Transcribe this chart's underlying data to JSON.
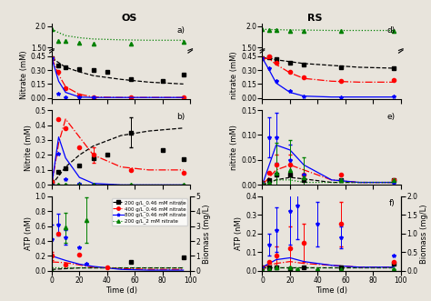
{
  "legend_labels": [
    "200 g/L_0.46 mM nitrate",
    "400 g/L_0.46 mM nitrate",
    "800 g/L_0.46 mM nitrate",
    "200 g/L_2 mM nitrate"
  ],
  "colors": [
    "black",
    "red",
    "blue",
    "green"
  ],
  "linestyles_model": [
    "--",
    "-.",
    "-",
    ":"
  ],
  "markers": [
    "s",
    "o",
    "*",
    "^"
  ],
  "OS_nitrate": {
    "t_data": [
      [
        0,
        5,
        10,
        20,
        30,
        40,
        57,
        80,
        95
      ],
      [
        0,
        5,
        10,
        20,
        30,
        57,
        95
      ],
      [
        0,
        5,
        10,
        20,
        30
      ],
      [
        0,
        5,
        10,
        20,
        30,
        57,
        95
      ]
    ],
    "y_data": [
      [
        0.43,
        0.35,
        0.33,
        0.31,
        0.3,
        0.28,
        0.2,
        0.18,
        0.25
      ],
      [
        0.43,
        0.28,
        0.1,
        0.03,
        0.01,
        0.005,
        0.01
      ],
      [
        0.43,
        0.05,
        0.01,
        0.005,
        0.005
      ],
      [
        1.93,
        1.65,
        1.65,
        1.62,
        1.6,
        1.6,
        1.63
      ]
    ],
    "t_model": [
      [
        0,
        5,
        10,
        20,
        30,
        50,
        70,
        95
      ],
      [
        0,
        5,
        10,
        20,
        30,
        50,
        70,
        95
      ],
      [
        0,
        5,
        10,
        20,
        30,
        50,
        70,
        95
      ],
      [
        0,
        5,
        10,
        20,
        30,
        50,
        70,
        95
      ]
    ],
    "y_model": [
      [
        0.43,
        0.38,
        0.33,
        0.28,
        0.24,
        0.2,
        0.17,
        0.15
      ],
      [
        0.43,
        0.25,
        0.12,
        0.04,
        0.01,
        0.005,
        0.005,
        0.005
      ],
      [
        0.43,
        0.18,
        0.06,
        0.01,
        0.005,
        0.005,
        0.005,
        0.005
      ],
      [
        1.93,
        1.85,
        1.78,
        1.73,
        1.7,
        1.68,
        1.67,
        1.67
      ]
    ],
    "ylim": [
      0,
      2.0
    ],
    "yticks_bottom": [
      0.0,
      0.15,
      0.3,
      0.45
    ],
    "yticks_top": [
      1.5,
      2.0
    ],
    "ylabel": "Nitrate (mM)",
    "label": "a)"
  },
  "OS_nitrite": {
    "t_data": [
      [
        0,
        5,
        10,
        20,
        30,
        40,
        57,
        80,
        95
      ],
      [
        0,
        5,
        10,
        20,
        30,
        57,
        95
      ],
      [
        0,
        5,
        10,
        20,
        30
      ],
      [
        0,
        5,
        10,
        20,
        30,
        57,
        95
      ]
    ],
    "y_data": [
      [
        0.02,
        0.09,
        0.11,
        0.13,
        0.18,
        0.2,
        0.35,
        0.23,
        0.17
      ],
      [
        0.02,
        0.44,
        0.38,
        0.25,
        0.2,
        0.1,
        0.08
      ],
      [
        0.0,
        0.21,
        0.04,
        0.01,
        0.0
      ],
      [
        0.0,
        0.0,
        0.0,
        0.0,
        0.0,
        0.0,
        0.0
      ]
    ],
    "y_err": [
      [
        0,
        0,
        0,
        0,
        0,
        0,
        0.1,
        0,
        0
      ],
      [
        0,
        0,
        0,
        0,
        0.05,
        0,
        0
      ],
      [
        0,
        0,
        0,
        0,
        0
      ],
      [
        0,
        0,
        0,
        0,
        0,
        0,
        0
      ]
    ],
    "t_model": [
      [
        0,
        5,
        10,
        20,
        30,
        50,
        70,
        95
      ],
      [
        0,
        5,
        10,
        20,
        30,
        50,
        70,
        95
      ],
      [
        0,
        5,
        10,
        20,
        30,
        50,
        70,
        95
      ],
      [
        0,
        5,
        10,
        20,
        30,
        50,
        70,
        95
      ]
    ],
    "y_model": [
      [
        0.0,
        0.06,
        0.12,
        0.2,
        0.26,
        0.33,
        0.36,
        0.38
      ],
      [
        0.0,
        0.28,
        0.44,
        0.32,
        0.2,
        0.12,
        0.1,
        0.1
      ],
      [
        0.0,
        0.32,
        0.18,
        0.05,
        0.01,
        0.0,
        0.0,
        0.0
      ],
      [
        0.0,
        0.0,
        0.0,
        0.0,
        0.0,
        0.0,
        0.0,
        0.0
      ]
    ],
    "ylim": [
      0,
      0.5
    ],
    "ylabel": "Nitrite (mM)",
    "label": "b)"
  },
  "OS_atp": {
    "t_data": [
      [
        57,
        95
      ],
      [
        0,
        5,
        10,
        20,
        40
      ],
      [
        0,
        5,
        10,
        20,
        25
      ],
      [
        0,
        10,
        25
      ]
    ],
    "y_data": [
      [
        0.12,
        0.18
      ],
      [
        0.2,
        0.5,
        0.08,
        0.22,
        0.05
      ],
      [
        0.42,
        0.62,
        0.45,
        0.32,
        0.1
      ],
      [
        0.0,
        0.58,
        0.68
      ]
    ],
    "y_err": [
      [
        0.0,
        0.0
      ],
      [
        0.05,
        0.0,
        0.0,
        0.0,
        0.0
      ],
      [
        0.2,
        0.15,
        0.1,
        0.0,
        0.0
      ],
      [
        0.0,
        0.2,
        0.3
      ]
    ],
    "t_model": [
      [
        0,
        10,
        20,
        30,
        50,
        70,
        95
      ],
      [
        0,
        10,
        20,
        30,
        50,
        70,
        95
      ],
      [
        0,
        10,
        20,
        30,
        50,
        70,
        95
      ],
      [
        0,
        10,
        20,
        30,
        50,
        70,
        95
      ]
    ],
    "y_model": [
      [
        0.02,
        0.03,
        0.04,
        0.04,
        0.04,
        0.04,
        0.04
      ],
      [
        0.12,
        0.11,
        0.08,
        0.05,
        0.03,
        0.02,
        0.02
      ],
      [
        0.2,
        0.14,
        0.09,
        0.06,
        0.02,
        0.01,
        0.01
      ],
      [
        0.05,
        0.05,
        0.05,
        0.05,
        0.05,
        0.05,
        0.05
      ]
    ],
    "ylim": [
      0,
      1.0
    ],
    "ylabel": "ATP (nM)",
    "ylabel2": "Biomass (mg/L)",
    "ylim2": [
      0,
      5
    ],
    "label": "c)"
  },
  "RS_nitrate": {
    "t_data": [
      [
        0,
        5,
        10,
        20,
        30,
        57,
        95
      ],
      [
        0,
        5,
        10,
        20,
        30,
        57,
        95
      ],
      [
        0,
        5,
        10,
        20,
        30,
        57,
        95
      ],
      [
        0,
        5,
        10,
        20,
        30,
        57,
        95
      ]
    ],
    "y_data": [
      [
        0.43,
        0.44,
        0.42,
        0.38,
        0.36,
        0.33,
        0.32
      ],
      [
        0.43,
        0.45,
        0.38,
        0.28,
        0.22,
        0.18,
        0.19
      ],
      [
        0.43,
        0.32,
        0.18,
        0.08,
        0.02,
        0.01,
        0.02
      ],
      [
        1.93,
        1.92,
        1.91,
        1.9,
        1.9,
        1.89,
        1.89
      ]
    ],
    "t_model": [
      [
        0,
        5,
        10,
        20,
        30,
        50,
        70,
        95
      ],
      [
        0,
        5,
        10,
        20,
        30,
        50,
        70,
        95
      ],
      [
        0,
        5,
        10,
        20,
        30,
        50,
        70,
        95
      ],
      [
        0,
        5,
        10,
        20,
        30,
        50,
        70,
        95
      ]
    ],
    "y_model": [
      [
        0.43,
        0.43,
        0.41,
        0.39,
        0.37,
        0.35,
        0.33,
        0.32
      ],
      [
        0.43,
        0.42,
        0.36,
        0.27,
        0.21,
        0.18,
        0.17,
        0.17
      ],
      [
        0.43,
        0.3,
        0.16,
        0.06,
        0.02,
        0.01,
        0.01,
        0.01
      ],
      [
        1.93,
        1.92,
        1.92,
        1.91,
        1.91,
        1.9,
        1.9,
        1.9
      ]
    ],
    "ylim": [
      0,
      2.0
    ],
    "yticks_bottom": [
      0.0,
      0.15,
      0.3,
      0.45
    ],
    "yticks_top": [
      1.5,
      2.0
    ],
    "ylabel": "nitrate (mM)",
    "label": "d)"
  },
  "RS_nitrite": {
    "t_data": [
      [
        0,
        5,
        10,
        20,
        30,
        57,
        95
      ],
      [
        0,
        5,
        10,
        20,
        30,
        57,
        95
      ],
      [
        0,
        5,
        10,
        20,
        30,
        57,
        95
      ],
      [
        0,
        5,
        10,
        20,
        30,
        57,
        95
      ]
    ],
    "y_data": [
      [
        0.005,
        0.01,
        0.02,
        0.02,
        0.01,
        0.01,
        0.01
      ],
      [
        0.005,
        0.025,
        0.04,
        0.04,
        0.02,
        0.02,
        0.01
      ],
      [
        0.005,
        0.095,
        0.095,
        0.05,
        0.02,
        0.01,
        0.005
      ],
      [
        0.005,
        0.005,
        0.025,
        0.03,
        0.015,
        0.01,
        0.01
      ]
    ],
    "y_err": [
      [
        0,
        0,
        0,
        0,
        0,
        0,
        0
      ],
      [
        0,
        0,
        0.02,
        0.02,
        0,
        0,
        0
      ],
      [
        0,
        0.04,
        0.05,
        0.03,
        0,
        0,
        0
      ],
      [
        0,
        0,
        0.06,
        0.06,
        0.04,
        0,
        0
      ]
    ],
    "t_model": [
      [
        0,
        5,
        10,
        20,
        30,
        50,
        70,
        95
      ],
      [
        0,
        5,
        10,
        20,
        30,
        50,
        70,
        95
      ],
      [
        0,
        5,
        10,
        20,
        30,
        50,
        70,
        95
      ],
      [
        0,
        5,
        10,
        20,
        30,
        50,
        70,
        95
      ]
    ],
    "y_model": [
      [
        0.0,
        0.005,
        0.01,
        0.015,
        0.012,
        0.005,
        0.005,
        0.005
      ],
      [
        0.0,
        0.015,
        0.03,
        0.04,
        0.03,
        0.01,
        0.005,
        0.005
      ],
      [
        0.0,
        0.04,
        0.08,
        0.07,
        0.04,
        0.01,
        0.005,
        0.005
      ],
      [
        0.0,
        0.005,
        0.01,
        0.01,
        0.005,
        0.005,
        0.005,
        0.005
      ]
    ],
    "ylim": [
      0,
      0.15
    ],
    "ylabel": "nitrite (mM)",
    "label": "e)"
  },
  "RS_atp": {
    "t_data": [
      [
        0,
        5,
        10,
        20,
        30,
        57,
        95
      ],
      [
        0,
        5,
        10,
        20,
        30,
        57,
        95
      ],
      [
        0,
        5,
        10,
        20,
        25,
        40,
        57,
        95
      ],
      [
        0,
        5,
        10,
        20,
        25,
        40,
        57,
        95
      ]
    ],
    "y_data": [
      [
        0.02,
        0.02,
        0.02,
        0.01,
        0.02,
        0.02,
        0.04
      ],
      [
        0.02,
        0.05,
        0.08,
        0.12,
        0.15,
        0.25,
        0.05
      ],
      [
        0.02,
        0.14,
        0.22,
        0.32,
        0.35,
        0.25,
        0.18,
        0.08
      ],
      [
        0.01,
        0.01,
        0.02,
        0.02,
        0.01,
        0.01,
        0.01,
        0.01
      ]
    ],
    "y_err": [
      [
        0,
        0,
        0,
        0,
        0,
        0,
        0
      ],
      [
        0,
        0,
        0.05,
        0.12,
        0.1,
        0.12,
        0.0
      ],
      [
        0,
        0.06,
        0.12,
        0.18,
        0.18,
        0.12,
        0.06,
        0.0
      ],
      [
        0,
        0,
        0,
        0,
        0,
        0,
        0,
        0
      ]
    ],
    "t_model": [
      [
        0,
        10,
        20,
        30,
        50,
        70,
        95
      ],
      [
        0,
        10,
        20,
        30,
        50,
        70,
        95
      ],
      [
        0,
        10,
        20,
        30,
        50,
        70,
        95
      ],
      [
        0,
        10,
        20,
        30,
        50,
        70,
        95
      ]
    ],
    "y_model": [
      [
        0.02,
        0.02,
        0.02,
        0.02,
        0.02,
        0.02,
        0.02
      ],
      [
        0.02,
        0.04,
        0.05,
        0.04,
        0.03,
        0.02,
        0.02
      ],
      [
        0.02,
        0.06,
        0.07,
        0.05,
        0.03,
        0.02,
        0.02
      ],
      [
        0.02,
        0.02,
        0.02,
        0.02,
        0.02,
        0.02,
        0.02
      ]
    ],
    "ylim": [
      0,
      0.4
    ],
    "ylabel": "ATP (nM)",
    "ylabel2": "Biomass (mg/L)",
    "ylim2": [
      0,
      2
    ],
    "label": "f)"
  },
  "xlabel": "Time (d)",
  "col_titles": [
    "OS",
    "RS"
  ],
  "title_fontsize": 8,
  "label_fontsize": 6,
  "tick_fontsize": 5.5,
  "background_color": "#e8e4dc"
}
